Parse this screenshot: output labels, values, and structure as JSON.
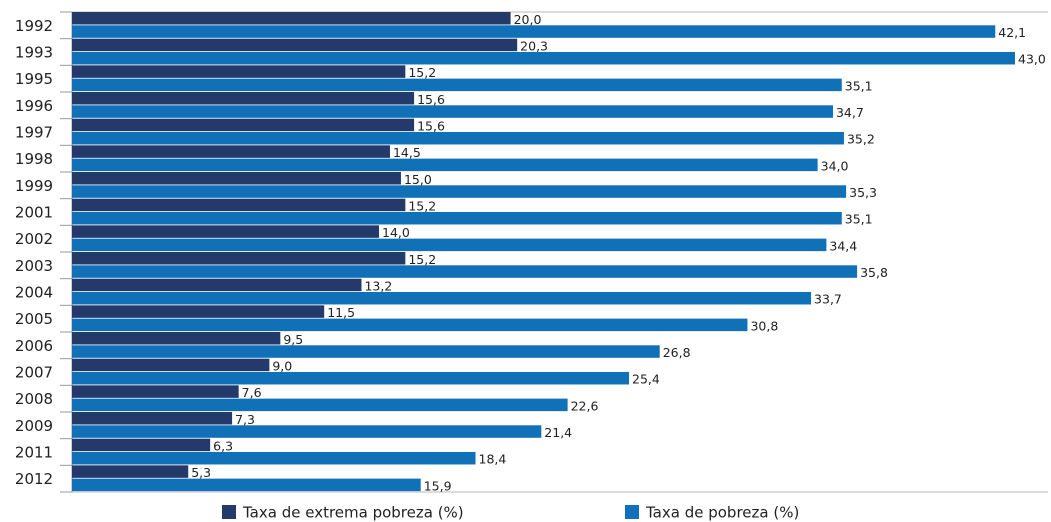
{
  "chart_data": {
    "type": "bar",
    "orientation": "horizontal",
    "categories": [
      "1992",
      "1993",
      "1995",
      "1996",
      "1997",
      "1998",
      "1999",
      "2001",
      "2002",
      "2003",
      "2004",
      "2005",
      "2006",
      "2007",
      "2008",
      "2009",
      "2011",
      "2012"
    ],
    "series": [
      {
        "name": "Taxa de extrema pobreza (%)",
        "color": "#233a6b",
        "values": [
          20.0,
          20.3,
          15.2,
          15.6,
          15.6,
          14.5,
          15.0,
          15.2,
          14.0,
          15.2,
          13.2,
          11.5,
          9.5,
          9.0,
          7.6,
          7.3,
          6.3,
          5.3
        ],
        "value_labels": [
          "20,0",
          "20,3",
          "15,2",
          "15,6",
          "15,6",
          "14,5",
          "15,0",
          "15,2",
          "14,0",
          "15,2",
          "13,2",
          "11,5",
          "9,5",
          "9,0",
          "7,6",
          "7,3",
          "6,3",
          "5,3"
        ]
      },
      {
        "name": "Taxa de pobreza (%)",
        "color": "#1070b8",
        "values": [
          42.1,
          43.0,
          35.1,
          34.7,
          35.2,
          34.0,
          35.3,
          35.1,
          34.4,
          35.8,
          33.7,
          30.8,
          26.8,
          25.4,
          22.6,
          21.4,
          18.4,
          15.9
        ],
        "value_labels": [
          "42,1",
          "43,0",
          "35,1",
          "34,7",
          "35,2",
          "34,0",
          "35,3",
          "35,1",
          "34,4",
          "35,8",
          "33,7",
          "30,8",
          "26,8",
          "25,4",
          "22,6",
          "21,4",
          "18,4",
          "15,9"
        ]
      }
    ]
  }
}
